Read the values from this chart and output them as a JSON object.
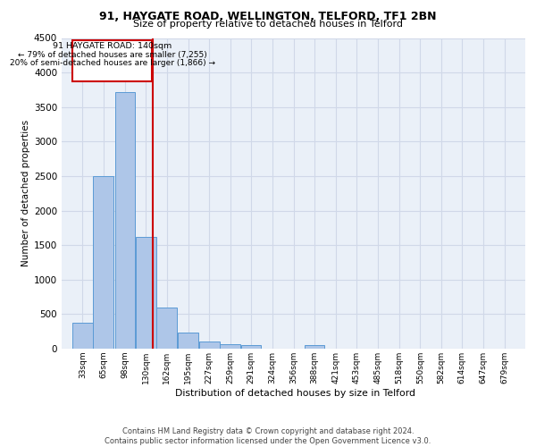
{
  "title1": "91, HAYGATE ROAD, WELLINGTON, TELFORD, TF1 2BN",
  "title2": "Size of property relative to detached houses in Telford",
  "xlabel": "Distribution of detached houses by size in Telford",
  "ylabel": "Number of detached properties",
  "annotation_line1": "91 HAYGATE ROAD: 140sqm",
  "annotation_line2": "← 79% of detached houses are smaller (7,255)",
  "annotation_line3": "20% of semi-detached houses are larger (1,866) →",
  "vline_x": 140,
  "bar_categories": [
    33,
    65,
    98,
    130,
    162,
    195,
    227,
    259,
    291,
    324,
    356,
    388,
    421,
    453,
    485,
    518,
    550,
    582,
    614,
    647,
    679
  ],
  "bar_values": [
    370,
    2500,
    3720,
    1620,
    590,
    230,
    110,
    70,
    50,
    0,
    0,
    55,
    0,
    0,
    0,
    0,
    0,
    0,
    0,
    0,
    0
  ],
  "bar_color": "#aec6e8",
  "bar_edge_color": "#5b9bd5",
  "grid_color": "#d0d8e8",
  "background_color": "#eaf0f8",
  "vline_color": "#cc0000",
  "box_edge_color": "#cc0000",
  "ylim": [
    0,
    4500
  ],
  "yticks": [
    0,
    500,
    1000,
    1500,
    2000,
    2500,
    3000,
    3500,
    4000,
    4500
  ],
  "footer": "Contains HM Land Registry data © Crown copyright and database right 2024.\nContains public sector information licensed under the Open Government Licence v3.0."
}
